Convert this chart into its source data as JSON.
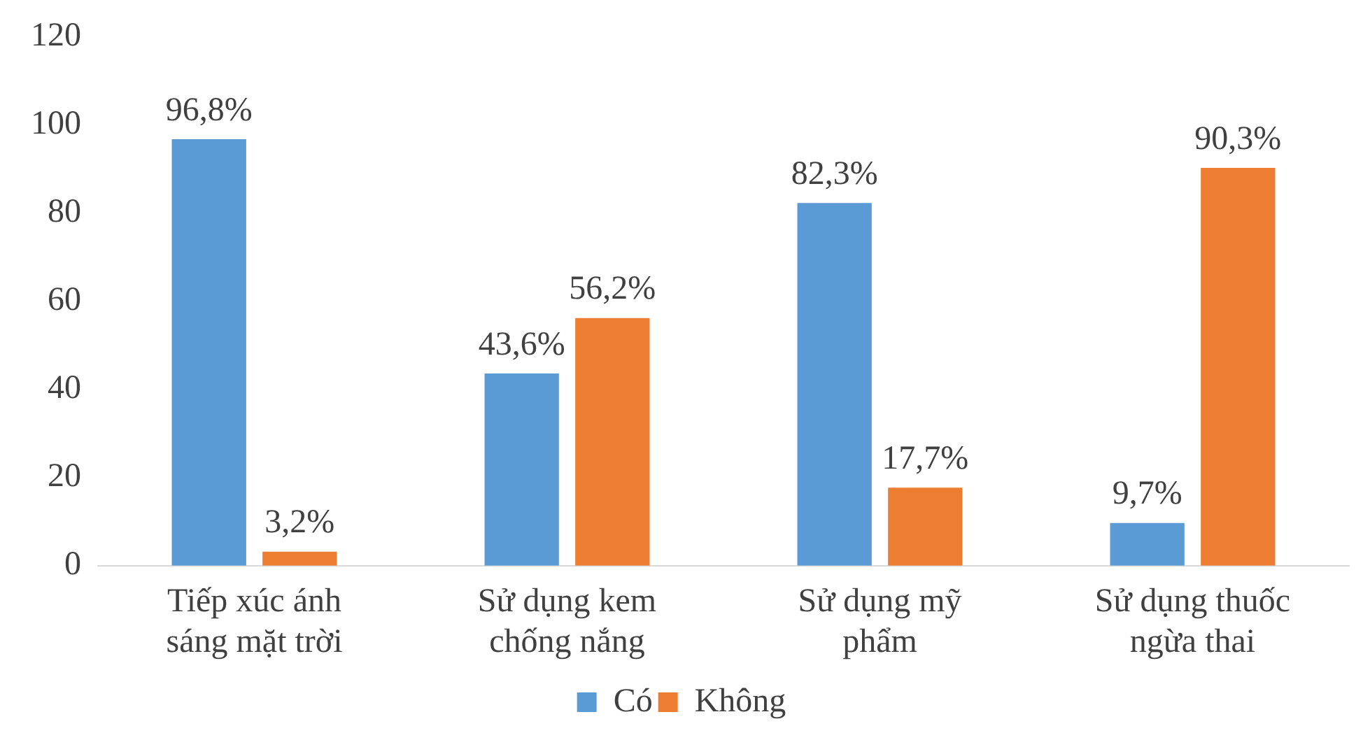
{
  "chart_data": {
    "type": "bar",
    "categories": [
      "Tiếp xúc ánh sáng mặt trời",
      "Sử dụng kem chống nắng",
      "Sử dụng mỹ phẩm",
      "Sử dụng thuốc ngừa thai"
    ],
    "series": [
      {
        "name": "Có",
        "color": "#5b9bd5",
        "values": [
          96.8,
          43.6,
          82.3,
          9.7
        ],
        "value_labels": [
          "96,8%",
          "43,6%",
          "82,3%",
          "9,7%"
        ]
      },
      {
        "name": "Không",
        "color": "#ed7d31",
        "values": [
          3.2,
          56.2,
          17.7,
          90.3
        ],
        "value_labels": [
          "3,2%",
          "56,2%",
          "17,7%",
          "90,3%"
        ]
      }
    ],
    "ylim": [
      0,
      120
    ],
    "yticks": [
      0,
      20,
      40,
      60,
      80,
      100,
      120
    ],
    "grid": false,
    "legend": "bottom"
  }
}
